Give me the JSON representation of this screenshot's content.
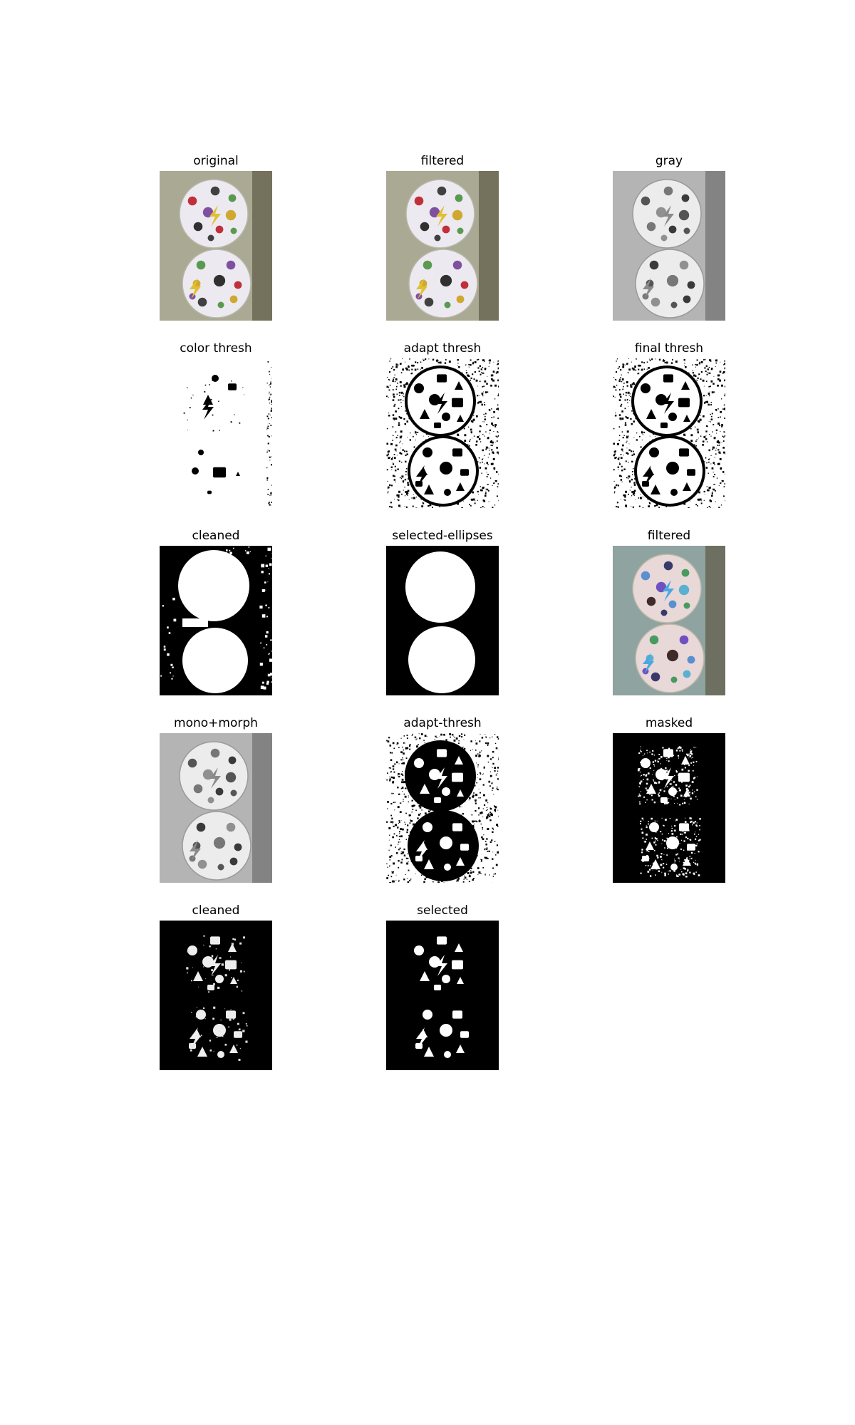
{
  "figure": {
    "panels": [
      {
        "title": "original",
        "kind": "color"
      },
      {
        "title": "filtered",
        "kind": "color"
      },
      {
        "title": "gray",
        "kind": "gray"
      },
      {
        "title": "color thresh",
        "kind": "colorthresh"
      },
      {
        "title": "adapt thresh",
        "kind": "adapt"
      },
      {
        "title": "final thresh",
        "kind": "adapt"
      },
      {
        "title": "cleaned",
        "kind": "cleaned"
      },
      {
        "title": "selected-ellipses",
        "kind": "ellipses"
      },
      {
        "title": "filtered",
        "kind": "tinted"
      },
      {
        "title": "mono+morph",
        "kind": "gray"
      },
      {
        "title": "adapt-thresh",
        "kind": "adaptinv"
      },
      {
        "title": "masked",
        "kind": "masked"
      },
      {
        "title": "cleaned",
        "kind": "blobs"
      },
      {
        "title": "selected",
        "kind": "selected"
      }
    ]
  }
}
